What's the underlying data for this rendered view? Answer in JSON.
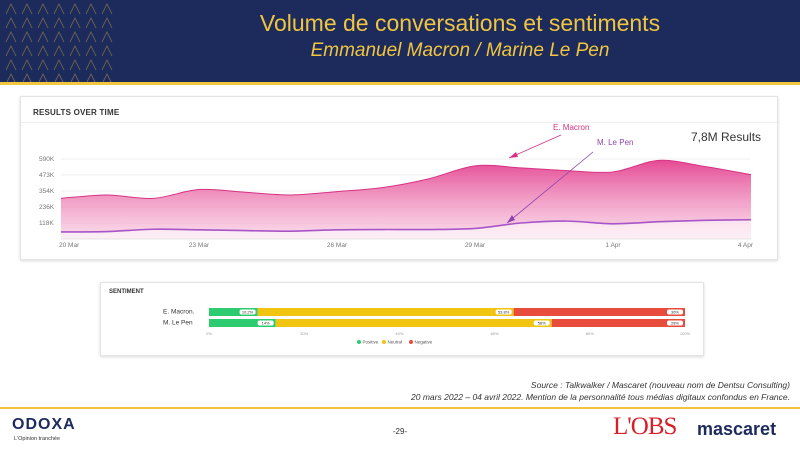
{
  "header": {
    "title": "Volume de conversations et sentiments",
    "subtitle": "Emmanuel Macron / Marine Le Pen"
  },
  "results": {
    "title": "RESULTS OVER TIME",
    "total": "7,8M Results",
    "annotation_macron": "E. Macron",
    "annotation_lepen": "M. Le Pen",
    "colors": {
      "macron": "#e4418f",
      "lepen": "#a855c8"
    }
  },
  "chart_data": [
    {
      "type": "area",
      "title": "RESULTS OVER TIME",
      "xlabel": "",
      "ylabel": "",
      "x_ticks": [
        "20 Mar",
        "23 Mar",
        "26 Mar",
        "29 Mar",
        "1 Apr",
        "4 Apr"
      ],
      "y_ticks": [
        "118K",
        "236K",
        "354K",
        "473K",
        "590K"
      ],
      "y_tick_values": [
        118,
        236,
        354,
        473,
        590
      ],
      "ylim": [
        0,
        620
      ],
      "x": [
        "20 Mar",
        "21 Mar",
        "22 Mar",
        "23 Mar",
        "24 Mar",
        "25 Mar",
        "26 Mar",
        "27 Mar",
        "28 Mar",
        "29 Mar",
        "30 Mar",
        "31 Mar",
        "1 Apr",
        "2 Apr",
        "3 Apr",
        "4 Apr"
      ],
      "series": [
        {
          "name": "E. Macron",
          "values": [
            300,
            325,
            300,
            365,
            345,
            325,
            350,
            380,
            445,
            540,
            525,
            505,
            495,
            580,
            535,
            475
          ]
        },
        {
          "name": "M. Le Pen",
          "values": [
            52,
            55,
            72,
            68,
            62,
            58,
            68,
            70,
            70,
            78,
            118,
            132,
            112,
            128,
            138,
            142
          ]
        }
      ],
      "grid": true,
      "legend": "annotations"
    },
    {
      "type": "bar",
      "orientation": "horizontal",
      "stacked": true,
      "title": "SENTIMENT",
      "categories": [
        "E. Macron.",
        "M. Le Pen"
      ],
      "series": [
        {
          "name": "Positive",
          "values": [
            10.2,
            14
          ],
          "labels": [
            "10.2%",
            "14%"
          ]
        },
        {
          "name": "Neutral",
          "values": [
            53.8,
            58
          ],
          "labels": [
            "53.8%",
            "58%"
          ]
        },
        {
          "name": "Negative",
          "values": [
            36,
            28
          ],
          "labels": [
            "36%",
            "28%"
          ]
        }
      ],
      "x_ticks": [
        "0%",
        "20%",
        "40%",
        "60%",
        "80%",
        "100%"
      ],
      "xlim": [
        0,
        100
      ],
      "legend": "bottom",
      "colors": {
        "Positive": "#2ecc71",
        "Neutral": "#f1c40f",
        "Negative": "#e74c3c"
      }
    }
  ],
  "footer": {
    "source": "Source : Talkwalker / Mascaret (nouveau nom de Dentsu Consulting)",
    "period": "20 mars 2022 – 04 avril 2022. Mention de la personnalité tous médias digitaux confondus en France.",
    "page": "-29-",
    "odoxa": "ODOXA",
    "odoxa_tagline": "L'Opinion tranchée",
    "obs": "L'OBS",
    "mascaret": "mascaret"
  }
}
